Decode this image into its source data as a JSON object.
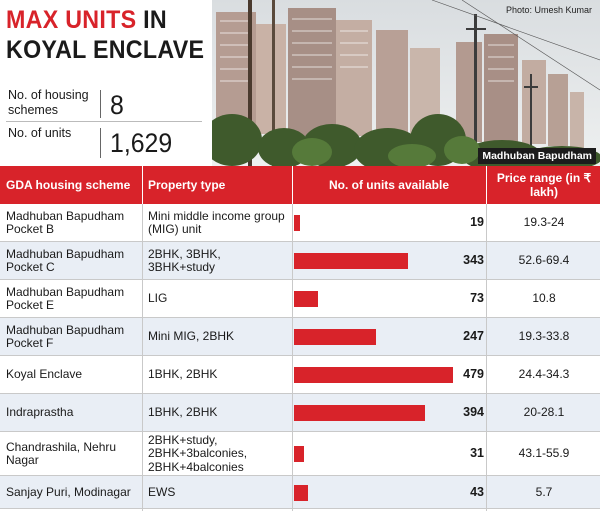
{
  "title": {
    "line1_red": "MAX UNITS",
    "line1_dark": "IN",
    "line2": "KOYAL ENCLAVE"
  },
  "stats": [
    {
      "label": "No. of housing schemes",
      "value": "8"
    },
    {
      "label": "No. of units",
      "value": "1,629"
    }
  ],
  "photo": {
    "credit": "Photo: Umesh Kumar",
    "caption": "Madhuban Bapudham"
  },
  "chart_data": {
    "type": "table",
    "columns": [
      "GDA housing scheme",
      "Property type",
      "No. of units available",
      "Price range (in ₹ lakh)"
    ],
    "rows": [
      {
        "scheme": "Madhuban Bapudham Pocket B",
        "type": "Mini middle income group (MIG) unit",
        "units": 19,
        "price": "19.3-24"
      },
      {
        "scheme": "Madhuban Bapudham Pocket C",
        "type": "2BHK, 3BHK, 3BHK+study",
        "units": 343,
        "price": "52.6-69.4"
      },
      {
        "scheme": "Madhuban Bapudham Pocket E",
        "type": "LIG",
        "units": 73,
        "price": "10.8"
      },
      {
        "scheme": "Madhuban Bapudham Pocket F",
        "type": "Mini MIG, 2BHK",
        "units": 247,
        "price": "19.3-33.8"
      },
      {
        "scheme": "Koyal Enclave",
        "type": "1BHK, 2BHK",
        "units": 479,
        "price": "24.4-34.3"
      },
      {
        "scheme": "Indraprastha",
        "type": "1BHK, 2BHK",
        "units": 394,
        "price": "20-28.1"
      },
      {
        "scheme": "Chandrashila, Nehru Nagar",
        "type": "2BHK+study, 2BHK+3balconies, 2BHK+4balconies",
        "units": 31,
        "price": "43.1-55.9"
      },
      {
        "scheme": "Sanjay Puri, Modinagar",
        "type": "EWS",
        "units": 43,
        "price": "5.7"
      }
    ],
    "series": [
      {
        "name": "No. of units available",
        "values": [
          19,
          343,
          73,
          247,
          479,
          394,
          31,
          43
        ]
      }
    ],
    "xlim": [
      0,
      479
    ]
  },
  "colors": {
    "accent": "#d8232a",
    "row_shade": "#e9eef5"
  }
}
